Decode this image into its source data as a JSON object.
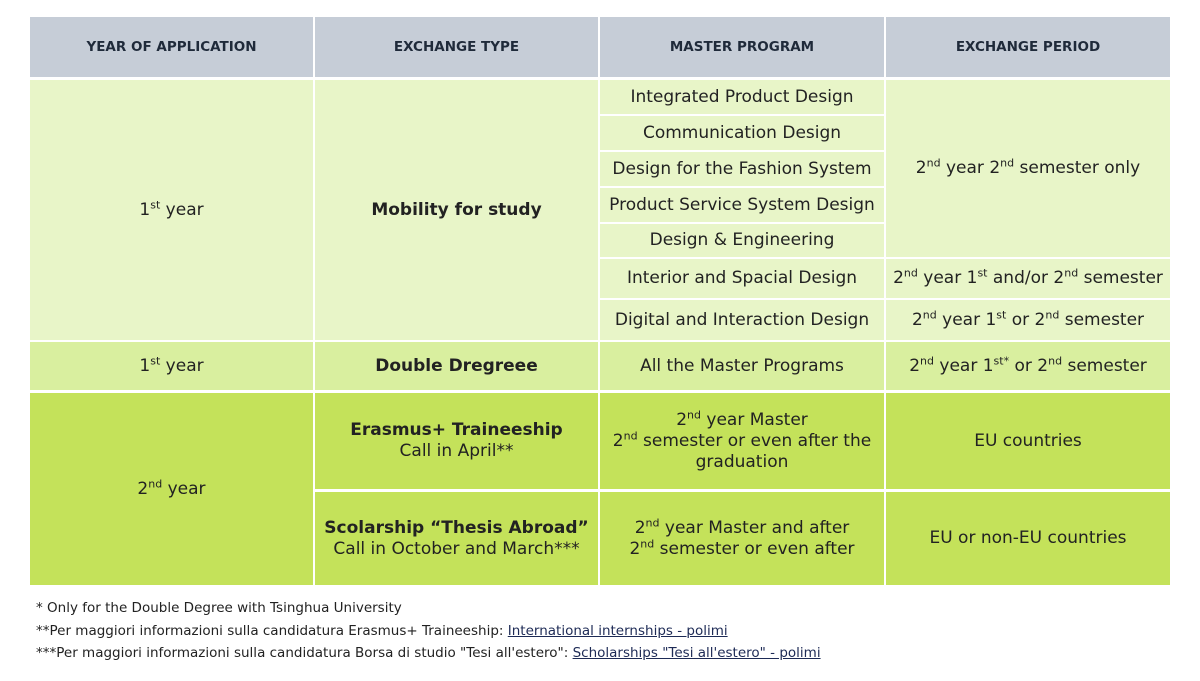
{
  "header": [
    "YEAR OF APPLICATION",
    "EXCHANGE TYPE",
    "MASTER PROGRAM",
    "EXCHANGE PERIOD"
  ],
  "cells": [
    {
      "lines": [
        [
          "1",
          {
            "sup": "st"
          },
          " year"
        ]
      ]
    },
    {
      "title": "Mobility for study"
    },
    {
      "lines": [
        [
          "Integrated Product Design"
        ]
      ]
    },
    {
      "lines": [
        [
          "Communication Design"
        ]
      ]
    },
    {
      "lines": [
        [
          "Design for the Fashion System"
        ]
      ]
    },
    {
      "lines": [
        [
          "Product Service System Design"
        ]
      ]
    },
    {
      "lines": [
        [
          "Design & Engineering"
        ]
      ]
    },
    {
      "lines": [
        [
          "Interior and Spacial Design"
        ]
      ]
    },
    {
      "lines": [
        [
          "Digital and Interaction Design"
        ]
      ]
    },
    {
      "lines": [
        [
          "2",
          {
            "sup": "nd"
          },
          " year 2",
          {
            "sup": "nd"
          },
          " semester only"
        ]
      ]
    },
    {
      "lines": [
        [
          "2",
          {
            "sup": "nd"
          },
          " year 1",
          {
            "sup": "st"
          },
          " and/or 2",
          {
            "sup": "nd"
          },
          " semester"
        ]
      ]
    },
    {
      "lines": [
        [
          "2",
          {
            "sup": "nd"
          },
          " year 1",
          {
            "sup": "st"
          },
          " or 2",
          {
            "sup": "nd"
          },
          " semester"
        ]
      ]
    },
    {
      "lines": [
        [
          "1",
          {
            "sup": "st"
          },
          " year"
        ]
      ]
    },
    {
      "title": "Double Dregreee"
    },
    {
      "lines": [
        [
          "All the Master Programs"
        ]
      ]
    },
    {
      "lines": [
        [
          "2",
          {
            "sup": "nd"
          },
          " year 1",
          {
            "sup": "st*"
          },
          " or 2",
          {
            "sup": "nd"
          },
          " semester"
        ]
      ]
    },
    {
      "lines": [
        [
          "2",
          {
            "sup": "nd"
          },
          " year"
        ]
      ]
    },
    {
      "title": "Erasmus+ Traineeship",
      "subtitle": "Call in April**"
    },
    {
      "lines": [
        [
          "2",
          {
            "sup": "nd"
          },
          " year Master"
        ],
        [
          "2",
          {
            "sup": "nd"
          },
          " semester or even after the"
        ],
        [
          "graduation"
        ]
      ]
    },
    {
      "lines": [
        [
          "EU countries"
        ]
      ]
    },
    {
      "title": "Scolarship “Thesis Abroad”",
      "subtitle": "Call in October and March***"
    },
    {
      "lines": [
        [
          "2",
          {
            "sup": "nd"
          },
          " year Master and after"
        ],
        [
          "2",
          {
            "sup": "nd"
          },
          " semester or even after"
        ]
      ]
    },
    {
      "lines": [
        [
          "EU or non-EU countries"
        ]
      ]
    }
  ],
  "notes": [
    {
      "text": "* Only for the Double Degree with Tsinghua University"
    },
    {
      "text": "**Per maggiori informazioni sulla candidatura Erasmus+ Traineeship: ",
      "link": "International internships - polimi"
    },
    {
      "text": "***Per maggiori informazioni sulla candidatura Borsa di studio \"Tesi all'estero\": ",
      "link": "Scholarships \"Tesi all'estero\" - polimi"
    }
  ]
}
